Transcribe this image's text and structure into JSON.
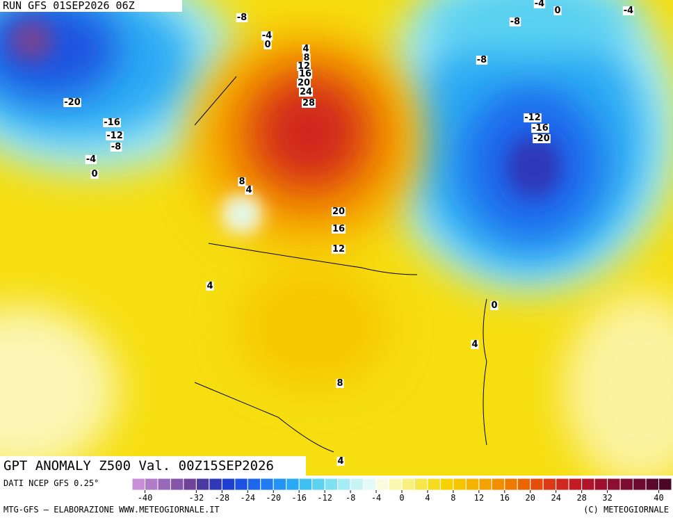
{
  "header": {
    "run": "RUN GFS 01SEP2026 06Z"
  },
  "map": {
    "title": "GPT ANOMALY Z500 Val. 00Z15SEP2026",
    "contour_labels": [
      -8,
      -4,
      0,
      4,
      8,
      12,
      16,
      20,
      24,
      28,
      -20,
      -16,
      -12,
      -8,
      -4,
      0,
      8,
      4,
      20,
      16,
      12,
      4,
      8,
      4,
      0,
      4,
      -4,
      0,
      -4,
      -8,
      -8,
      -12,
      -16,
      -20
    ]
  },
  "colorbar": {
    "source": "DATI NCEP GFS 0.25°",
    "lim": [
      -42,
      42
    ],
    "colors": [
      "#c88fd8",
      "#b07cc8",
      "#9a68b8",
      "#8556a8",
      "#6f4498",
      "#4a3aa0",
      "#2f38b8",
      "#1f3fd0",
      "#1c52e0",
      "#1e66ec",
      "#1f7cf2",
      "#2294f4",
      "#2aaaf4",
      "#3ec0f2",
      "#5ad2f0",
      "#7ee0f2",
      "#a6ecf4",
      "#c8f4f6",
      "#e4faf8",
      "#fbfbe0",
      "#fbf7b0",
      "#faf080",
      "#f8e64a",
      "#f6dc20",
      "#f6d200",
      "#f6c400",
      "#f6b400",
      "#f4a200",
      "#f28e00",
      "#ee7a00",
      "#ea6400",
      "#e44e0a",
      "#dc3a14",
      "#d0281c",
      "#c21c22",
      "#b01428",
      "#9e102c",
      "#8c0e30",
      "#7c0c30",
      "#6c0a2e",
      "#5c082a",
      "#4c0626"
    ],
    "ticks": [
      -40,
      -32,
      -28,
      -24,
      -20,
      -16,
      -12,
      -8,
      -4,
      0,
      4,
      8,
      12,
      16,
      20,
      24,
      28,
      32,
      40
    ]
  },
  "footer": {
    "left": "MTG-GFS — ELABORAZIONE WWW.METEOGIORNALE.IT",
    "right": "(C) METEOGIORNALE"
  }
}
